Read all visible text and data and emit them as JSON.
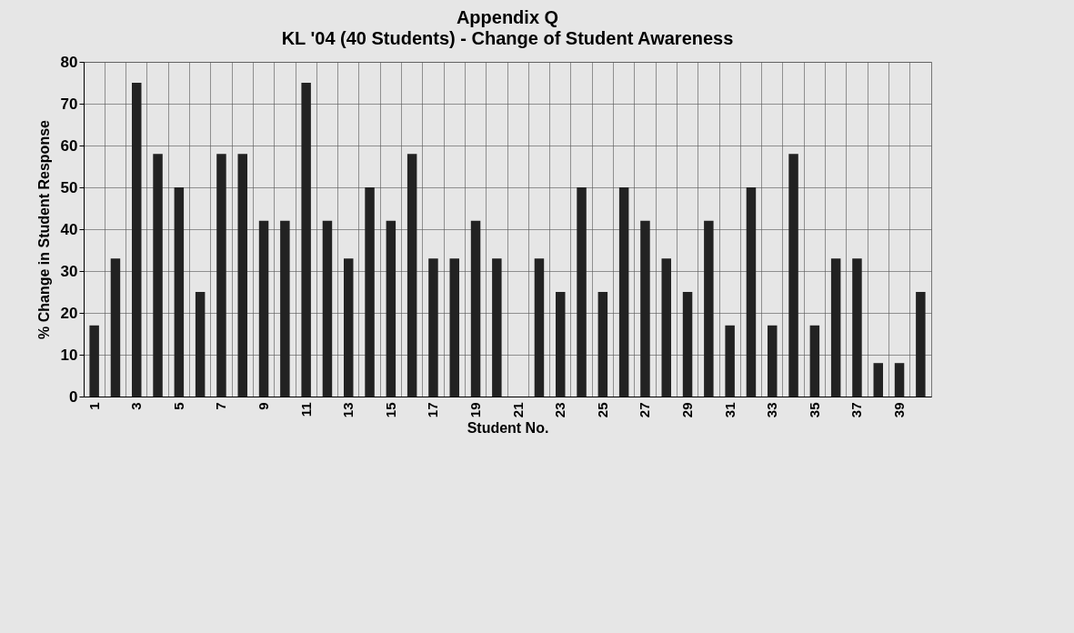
{
  "chart_data": {
    "type": "bar",
    "title": "Appendix Q",
    "subtitle": "KL '04  (40 Students) - Change of Student Awareness",
    "xlabel": "Student No.",
    "ylabel": "% Change in Student Response",
    "categories": [
      "1",
      null,
      "3",
      null,
      "5",
      null,
      "7",
      null,
      "9",
      null,
      "11",
      null,
      "13",
      null,
      "15",
      null,
      "17",
      null,
      "19",
      null,
      "21",
      null,
      "23",
      null,
      "25",
      null,
      "27",
      null,
      "29",
      null,
      "31",
      null,
      "33",
      null,
      "35",
      null,
      "37",
      null,
      "39",
      null
    ],
    "values": [
      17,
      33,
      75,
      58,
      50,
      25,
      58,
      58,
      42,
      42,
      75,
      42,
      33,
      50,
      42,
      58,
      33,
      33,
      42,
      33,
      0,
      33,
      25,
      50,
      25,
      50,
      42,
      33,
      25,
      42,
      17,
      50,
      17,
      58,
      17,
      33,
      33,
      8,
      8,
      25
    ],
    "color": "#222222",
    "ylim": [
      0,
      80
    ],
    "yticks": [
      0,
      10,
      20,
      30,
      40,
      50,
      60,
      70,
      80
    ],
    "grid": true
  }
}
